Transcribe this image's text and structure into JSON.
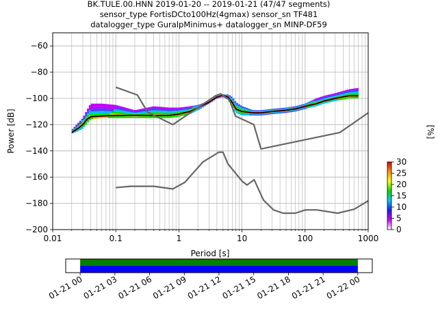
{
  "title_lines": [
    "BK.TULE.00.HNN   2019-01-20 -- 2019-01-21  (47/47 segments)",
    "sensor_type FortisDCto100Hz(4gmax) sensor_sn TF481",
    "datalogger_type GuralpMinimus+ datalogger_sn MINP-DF59"
  ],
  "chart_data": [
    {
      "type": "heatmap",
      "xlabel": "Period [s]",
      "ylabel": "Power [dB]",
      "xscale": "log",
      "xlim": [
        0.01,
        1000
      ],
      "ylim": [
        -200,
        -50
      ],
      "x_ticks": [
        0.01,
        0.1,
        1,
        10,
        100,
        1000
      ],
      "x_tick_labels": [
        "0.01",
        "0.1",
        "1",
        "10",
        "100",
        "1000"
      ],
      "y_ticks": [
        -200,
        -180,
        -160,
        -140,
        -120,
        -100,
        -80,
        -60
      ],
      "y_tick_labels": [
        "−200",
        "−180",
        "−160",
        "−140",
        "−120",
        "−100",
        "−80",
        "−60"
      ],
      "grid": true,
      "colorbar": {
        "label": "[%]",
        "min": 0,
        "max": 30,
        "ticks": [
          0,
          5,
          10,
          15,
          20,
          25,
          30
        ],
        "tick_labels": [
          "0",
          "5",
          "10",
          "15",
          "20",
          "25",
          "30"
        ],
        "colors": [
          "#ffffff",
          "#d000ff",
          "#1a1aff",
          "#00c8ff",
          "#00e000",
          "#ffff00",
          "#ff9000",
          "#e00000"
        ]
      },
      "series": [
        {
          "role": "new-high-noise-model",
          "color": "#666666",
          "x": [
            0.1,
            0.22,
            0.32,
            0.8,
            3.8,
            4.6,
            6.3,
            7.9,
            15.4,
            20,
            354.8,
            1000
          ],
          "y": [
            -91.5,
            -97.4,
            -110.5,
            -120,
            -98,
            -96.5,
            -101,
            -113.5,
            -120,
            -138.5,
            -126,
            -111
          ]
        },
        {
          "role": "new-low-noise-model",
          "color": "#666666",
          "x": [
            0.1,
            0.17,
            0.4,
            0.8,
            1.24,
            2.4,
            4.3,
            5,
            6,
            10,
            12,
            15.6,
            21.9,
            31.6,
            45,
            70,
            101,
            154,
            328,
            600,
            1000
          ],
          "y": [
            -168,
            -167,
            -167,
            -169,
            -164,
            -148.5,
            -141,
            -141,
            -150,
            -163,
            -166,
            -162,
            -177.5,
            -185,
            -187.5,
            -187.5,
            -185,
            -185,
            -187.5,
            -184.5,
            -178
          ]
        },
        {
          "role": "mode",
          "color": "#000000",
          "x": [
            0.02,
            0.025,
            0.03,
            0.035,
            0.04,
            0.06,
            0.1,
            0.2,
            0.4,
            0.7,
            1,
            1.5,
            2,
            3,
            4,
            5,
            6,
            7,
            8,
            10,
            15,
            20,
            30,
            50,
            70,
            100,
            150,
            200,
            300,
            500,
            700
          ],
          "y": [
            -126,
            -123,
            -120,
            -116,
            -114,
            -113.5,
            -113,
            -113,
            -113,
            -113,
            -112,
            -110,
            -107,
            -103,
            -99,
            -97.5,
            -99,
            -103,
            -108,
            -110,
            -111,
            -111,
            -110,
            -109,
            -108,
            -106,
            -104,
            -102,
            -100,
            -98,
            -98
          ]
        },
        {
          "role": "band-upper",
          "color": "#9900ff",
          "x": [
            0.02,
            0.025,
            0.03,
            0.035,
            0.04,
            0.06,
            0.1,
            0.2,
            0.4,
            0.7,
            1,
            1.5,
            2,
            3,
            4,
            5,
            6,
            7,
            8,
            10,
            15,
            20,
            30,
            50,
            70,
            100,
            150,
            200,
            300,
            500,
            700
          ],
          "y": [
            -124,
            -119,
            -115,
            -109,
            -104,
            -104,
            -105,
            -109,
            -106,
            -107,
            -107,
            -106,
            -105,
            -102,
            -98,
            -97,
            -97,
            -99,
            -103,
            -106,
            -109,
            -109,
            -108,
            -107,
            -106,
            -104,
            -100,
            -98,
            -96,
            -93,
            -92
          ]
        },
        {
          "role": "band-lower",
          "color": "#00e000",
          "x": [
            0.02,
            0.025,
            0.03,
            0.035,
            0.04,
            0.06,
            0.1,
            0.2,
            0.4,
            0.7,
            1,
            1.5,
            2,
            3,
            4,
            5,
            6,
            7,
            8,
            10,
            15,
            20,
            30,
            50,
            70,
            100,
            150,
            200,
            300,
            500,
            700
          ],
          "y": [
            -127,
            -125,
            -123,
            -119,
            -116,
            -115,
            -115,
            -115,
            -115,
            -115,
            -114,
            -112,
            -109,
            -104,
            -100,
            -99,
            -101,
            -106,
            -111,
            -113,
            -113,
            -113,
            -112,
            -111,
            -110,
            -108,
            -106,
            -104,
            -102,
            -100,
            -100
          ]
        }
      ]
    },
    {
      "type": "bar",
      "role": "data-availability",
      "x_tick_labels": [
        "01-21 00",
        "01-21 03",
        "01-21 06",
        "01-21 09",
        "01-21 12",
        "01-21 15",
        "01-21 18",
        "01-21 21",
        "01-22 00"
      ],
      "bands": [
        {
          "from": "01-21 00",
          "to": "01-22 00",
          "color": "#008000"
        },
        {
          "from": "01-21 00",
          "to": "01-22 00",
          "color": "#0000ff"
        }
      ],
      "xlim": [
        "01-20 22:45",
        "01-22 01:15"
      ]
    }
  ]
}
